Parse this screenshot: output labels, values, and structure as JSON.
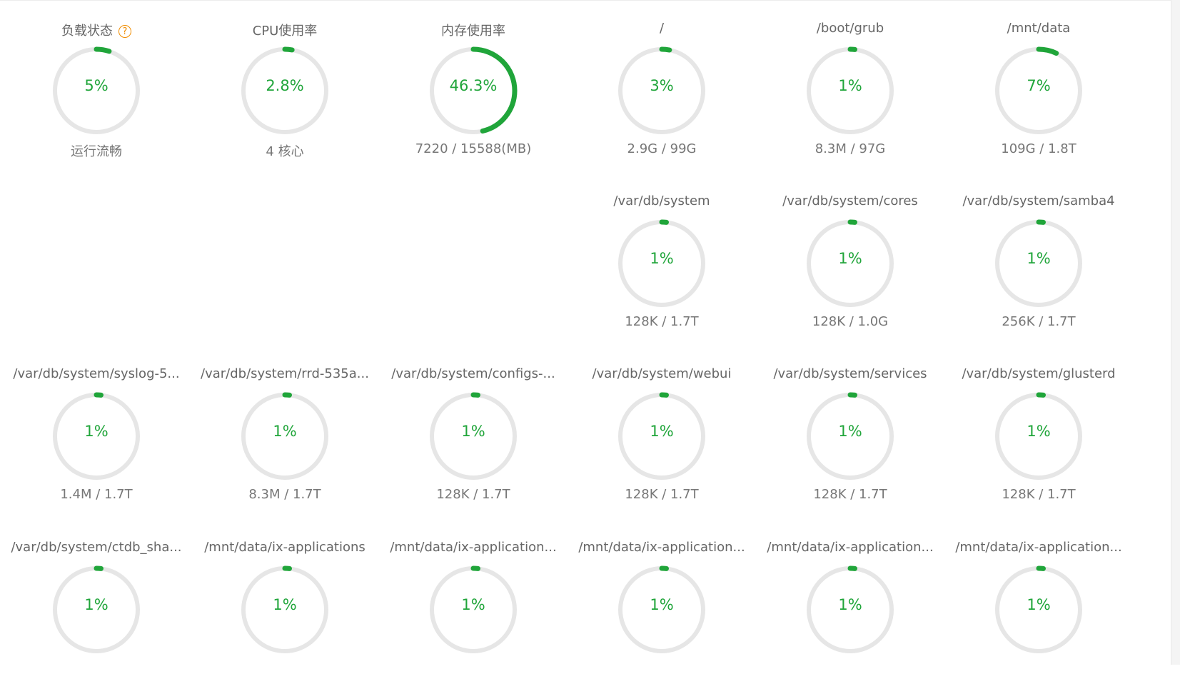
{
  "panel": {
    "accent_color": "#20a53a",
    "track_color": "#e6e6e6",
    "help_icon": "question-circle-icon",
    "gauges": [
      {
        "title": "负载状态",
        "value": "5%",
        "percent": 5,
        "sub": "运行流畅",
        "help": true
      },
      {
        "title": "CPU使用率",
        "value": "2.8%",
        "percent": 2.8,
        "sub": "4 核心"
      },
      {
        "title": "内存使用率",
        "value": "46.3%",
        "percent": 46.3,
        "sub": "7220 / 15588(MB)"
      },
      {
        "title": "/",
        "value": "3%",
        "percent": 3,
        "sub": "2.9G / 99G"
      },
      {
        "title": "/boot/grub",
        "value": "1%",
        "percent": 1,
        "sub": "8.3M / 97G"
      },
      {
        "title": "/mnt/data",
        "value": "7%",
        "percent": 7,
        "sub": "109G / 1.8T"
      },
      {
        "title": "/var/db/system",
        "value": "1%",
        "percent": 1,
        "sub": "128K / 1.7T"
      },
      {
        "title": "/var/db/system/cores",
        "value": "1%",
        "percent": 1,
        "sub": "128K / 1.0G"
      },
      {
        "title": "/var/db/system/samba4",
        "value": "1%",
        "percent": 1,
        "sub": "256K / 1.7T"
      },
      {
        "title": "/var/db/system/syslog-5...",
        "value": "1%",
        "percent": 1,
        "sub": "1.4M / 1.7T"
      },
      {
        "title": "/var/db/system/rrd-535a...",
        "value": "1%",
        "percent": 1,
        "sub": "8.3M / 1.7T"
      },
      {
        "title": "/var/db/system/configs-...",
        "value": "1%",
        "percent": 1,
        "sub": "128K / 1.7T"
      },
      {
        "title": "/var/db/system/webui",
        "value": "1%",
        "percent": 1,
        "sub": "128K / 1.7T"
      },
      {
        "title": "/var/db/system/services",
        "value": "1%",
        "percent": 1,
        "sub": "128K / 1.7T"
      },
      {
        "title": "/var/db/system/glusterd",
        "value": "1%",
        "percent": 1,
        "sub": "128K / 1.7T"
      },
      {
        "title": "/var/db/system/ctdb_sha...",
        "value": "1%",
        "percent": 1,
        "sub": ""
      },
      {
        "title": "/mnt/data/ix-applications",
        "value": "1%",
        "percent": 1,
        "sub": ""
      },
      {
        "title": "/mnt/data/ix-application...",
        "value": "1%",
        "percent": 1,
        "sub": ""
      },
      {
        "title": "/mnt/data/ix-application...",
        "value": "1%",
        "percent": 1,
        "sub": ""
      },
      {
        "title": "/mnt/data/ix-application...",
        "value": "1%",
        "percent": 1,
        "sub": ""
      },
      {
        "title": "/mnt/data/ix-application...",
        "value": "1%",
        "percent": 1,
        "sub": ""
      }
    ]
  }
}
